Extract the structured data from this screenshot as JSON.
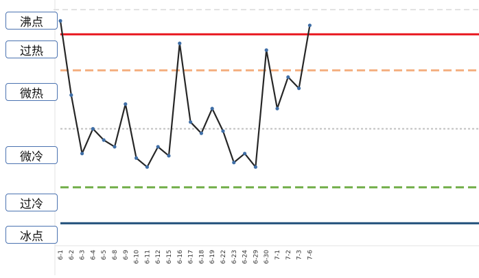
{
  "chart_data": {
    "type": "line",
    "title": "",
    "xlabel": "",
    "ylabel": "",
    "categories": [
      "6-1",
      "6-2",
      "6-3",
      "6-4",
      "6-5",
      "6-8",
      "6-9",
      "6-10",
      "6-11",
      "6-12",
      "6-15",
      "6-16",
      "6-17",
      "6-18",
      "6-19",
      "6-22",
      "6-23",
      "6-24",
      "6-29",
      "6-30",
      "7-1",
      "7-2",
      "7-3",
      "7-6"
    ],
    "series": [
      {
        "values": [
          100,
          67,
          41,
          52,
          47,
          44,
          63,
          39,
          35,
          44,
          40,
          90,
          55,
          50,
          61,
          51,
          37,
          41,
          35,
          87,
          61,
          75,
          70,
          98
        ]
      }
    ],
    "ylim": [
      0,
      105
    ],
    "levels": [
      {
        "label": "沸点",
        "value": 94,
        "color": "#e8141c",
        "style": "solid"
      },
      {
        "label": "过热",
        "value": null
      },
      {
        "label": "微热",
        "value": 78,
        "color": "#f4b183",
        "style": "dashed"
      },
      {
        "label": "微冷",
        "value": 52,
        "color": "#bfbfbf",
        "style": "dotted"
      },
      {
        "label": "过冷",
        "value": 26,
        "color": "#70ad47",
        "style": "dashed"
      },
      {
        "label": "冰点",
        "value": 10,
        "color": "#1f4e79",
        "style": "solid"
      }
    ],
    "grid": true,
    "line_color": "#262626",
    "marker_color": "#3f6ea6"
  }
}
